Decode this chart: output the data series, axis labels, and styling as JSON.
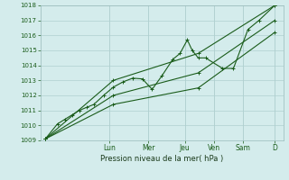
{
  "xlabel": "Pression niveau de la mer( hPa )",
  "bg_color": "#d4ecec",
  "grid_color": "#b0d0d0",
  "line_color": "#1a5c1a",
  "ylim": [
    1009,
    1018
  ],
  "yticks": [
    1009,
    1010,
    1011,
    1012,
    1013,
    1014,
    1015,
    1016,
    1017,
    1018
  ],
  "day_labels": [
    "Lun",
    "Mer",
    "Jeu",
    "Ven",
    "Sam",
    "D"
  ],
  "day_x": [
    0.285,
    0.445,
    0.595,
    0.715,
    0.835,
    0.965
  ],
  "series": [
    {
      "x": [
        0.02,
        0.07,
        0.1,
        0.13,
        0.16,
        0.19,
        0.22,
        0.26,
        0.3,
        0.34,
        0.38,
        0.42,
        0.46,
        0.5,
        0.545,
        0.575,
        0.605,
        0.625,
        0.65,
        0.68,
        0.75,
        0.795,
        0.855,
        0.9,
        0.965
      ],
      "y": [
        1009.1,
        1010.1,
        1010.4,
        1010.7,
        1011.0,
        1011.2,
        1011.4,
        1012.0,
        1012.55,
        1012.9,
        1013.15,
        1013.1,
        1012.4,
        1013.3,
        1014.4,
        1014.8,
        1015.7,
        1015.0,
        1014.5,
        1014.5,
        1013.8,
        1013.8,
        1016.4,
        1017.0,
        1018.0
      ]
    },
    {
      "x": [
        0.02,
        0.3,
        0.65,
        0.965
      ],
      "y": [
        1009.1,
        1013.0,
        1014.8,
        1018.0
      ]
    },
    {
      "x": [
        0.02,
        0.3,
        0.65,
        0.965
      ],
      "y": [
        1009.1,
        1012.0,
        1013.5,
        1017.0
      ]
    },
    {
      "x": [
        0.02,
        0.3,
        0.65,
        0.965
      ],
      "y": [
        1009.1,
        1011.4,
        1012.5,
        1016.2
      ]
    }
  ]
}
